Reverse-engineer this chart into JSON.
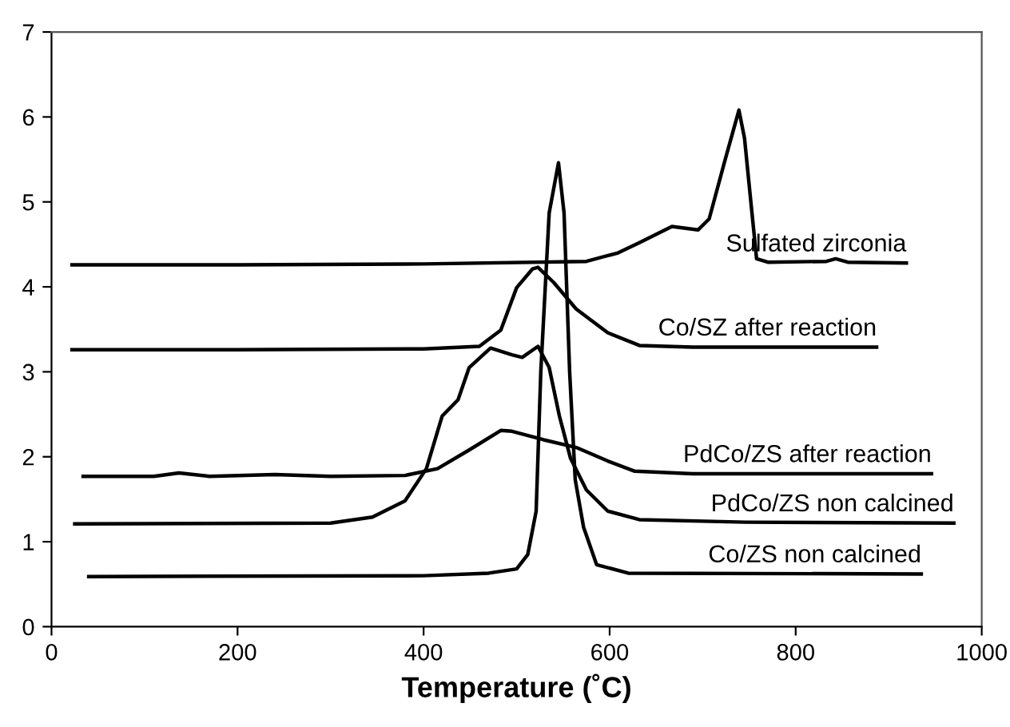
{
  "chart_data": {
    "type": "line",
    "xlabel": "Temperature (˚C)",
    "xlim": [
      0,
      1000
    ],
    "xticks": [
      0,
      200,
      400,
      600,
      800,
      1000
    ],
    "ylim": [
      0,
      7
    ],
    "yticks": [
      0,
      1,
      2,
      3,
      4,
      5,
      6,
      7
    ],
    "grid": false,
    "legend": false,
    "marker": "none",
    "line_style": "solid",
    "series": [
      {
        "name": "Sulfated zirconia",
        "color": "#000000",
        "x": [
          22,
          200,
          400,
          575,
          609,
          632,
          667,
          695,
          707,
          724,
          739,
          745,
          753,
          758,
          770,
          833,
          843,
          856,
          919
        ],
        "values": [
          4.26,
          4.26,
          4.27,
          4.3,
          4.4,
          4.52,
          4.71,
          4.67,
          4.8,
          5.49,
          6.08,
          5.75,
          4.87,
          4.33,
          4.29,
          4.3,
          4.33,
          4.29,
          4.28
        ]
      },
      {
        "name": "Co/SZ after reaction",
        "color": "#000000",
        "x": [
          22,
          200,
          400,
          460,
          483,
          500,
          517,
          523,
          540,
          564,
          598,
          632,
          689,
          887
        ],
        "values": [
          3.26,
          3.26,
          3.27,
          3.3,
          3.49,
          3.99,
          4.21,
          4.23,
          4.05,
          3.74,
          3.46,
          3.31,
          3.29,
          3.29
        ]
      },
      {
        "name": "PdCo/ZS after reaction",
        "color": "#000000",
        "x": [
          34,
          110,
          137,
          170,
          240,
          300,
          380,
          415,
          449,
          483,
          495,
          529,
          564,
          598,
          627,
          689,
          946
        ],
        "values": [
          1.77,
          1.77,
          1.81,
          1.77,
          1.79,
          1.77,
          1.78,
          1.86,
          2.08,
          2.31,
          2.3,
          2.2,
          2.11,
          1.95,
          1.83,
          1.8,
          1.8
        ]
      },
      {
        "name": "PdCo/ZS non calcined",
        "color": "#000000",
        "x": [
          25,
          300,
          345,
          380,
          403,
          420,
          437,
          449,
          472,
          495,
          506,
          523,
          535,
          546,
          558,
          575,
          598,
          632,
          746,
          970
        ],
        "values": [
          1.21,
          1.22,
          1.29,
          1.48,
          1.86,
          2.48,
          2.67,
          3.05,
          3.28,
          3.2,
          3.17,
          3.3,
          3.05,
          2.48,
          1.98,
          1.61,
          1.36,
          1.26,
          1.23,
          1.22
        ]
      },
      {
        "name": "Co/ZS non calcined",
        "color": "#000000",
        "x": [
          40,
          400,
          470,
          500,
          512,
          521,
          526,
          535,
          545,
          551,
          557,
          563,
          572,
          586,
          620,
          935
        ],
        "values": [
          0.59,
          0.6,
          0.63,
          0.68,
          0.85,
          1.36,
          3.0,
          4.87,
          5.46,
          4.87,
          3.0,
          1.73,
          1.17,
          0.73,
          0.63,
          0.62
        ]
      }
    ]
  }
}
